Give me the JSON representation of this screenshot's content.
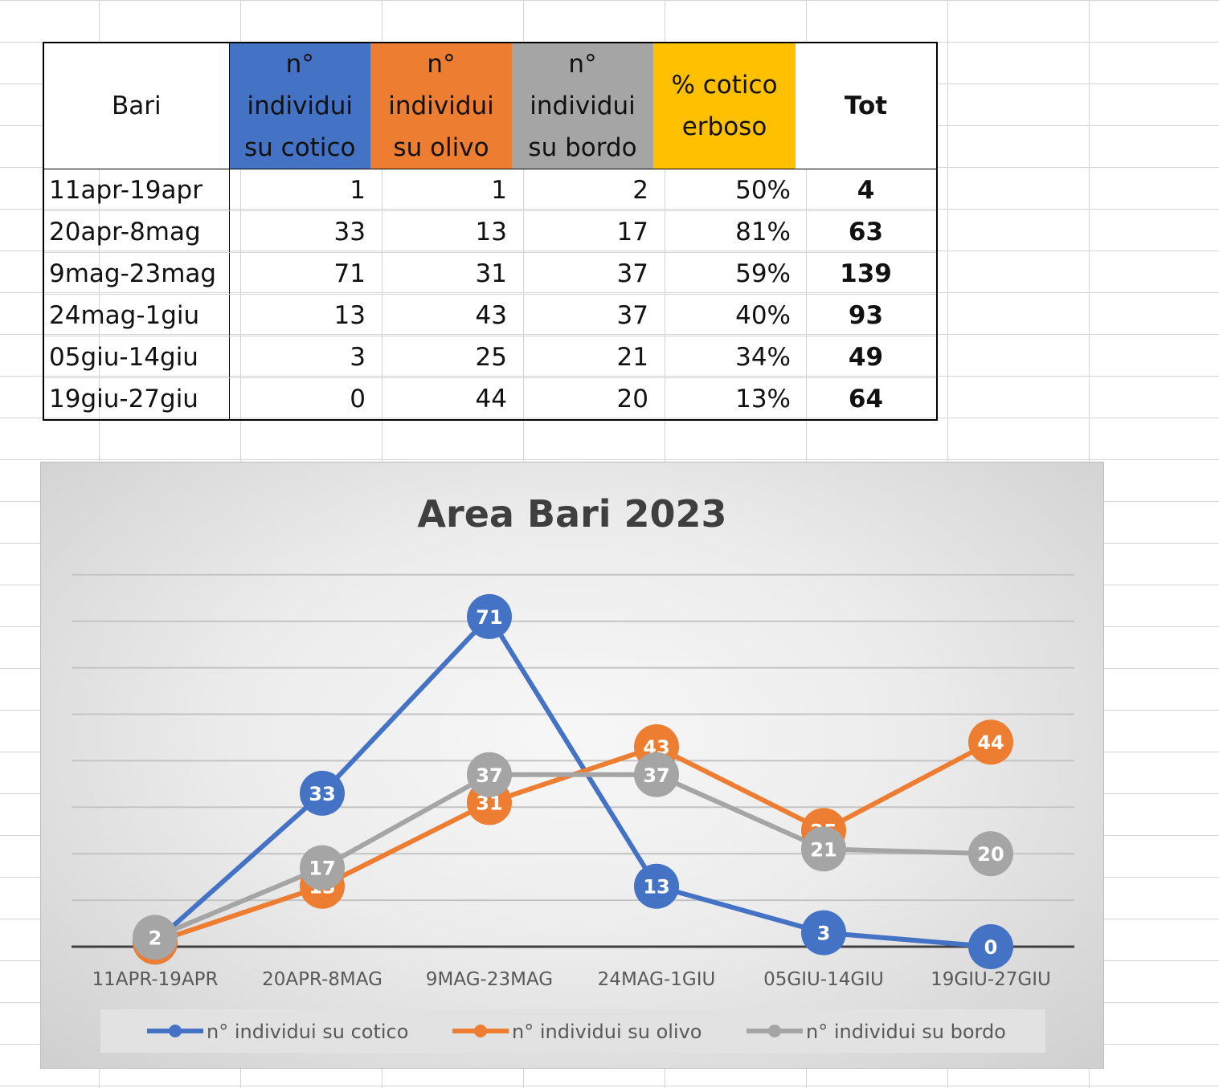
{
  "table": {
    "headers": [
      {
        "label": "Bari",
        "bg": "#ffffff",
        "color": "#111111"
      },
      {
        "label": "n° individui su cotico",
        "bg": "#4472c4",
        "color": "#111111"
      },
      {
        "label": "n° individui su olivo",
        "bg": "#ed7d31",
        "color": "#111111"
      },
      {
        "label": "n° individui su bordo",
        "bg": "#a5a5a5",
        "color": "#111111"
      },
      {
        "label": "% cotico erboso",
        "bg": "#ffc000",
        "color": "#111111"
      },
      {
        "label": "Tot",
        "bg": "#ffffff",
        "color": "#111111"
      }
    ],
    "rows": [
      [
        "11apr-19apr",
        "1",
        "1",
        "2",
        "50%",
        "4"
      ],
      [
        "20apr-8mag",
        "33",
        "13",
        "17",
        "81%",
        "63"
      ],
      [
        "9mag-23mag",
        "71",
        "31",
        "37",
        "59%",
        "139"
      ],
      [
        "24mag-1giu",
        "13",
        "43",
        "37",
        "40%",
        "93"
      ],
      [
        "05giu-14giu",
        "3",
        "25",
        "21",
        "34%",
        "49"
      ],
      [
        "19giu-27giu",
        "0",
        "44",
        "20",
        "13%",
        "64"
      ]
    ]
  },
  "chart_data": {
    "type": "line",
    "title": "Area Bari 2023",
    "xlabel": "",
    "ylabel": "",
    "categories": [
      "11APR-19APR",
      "20APR-8MAG",
      "9MAG-23MAG",
      "24MAG-1GIU",
      "05GIU-14GIU",
      "19GIU-27GIU"
    ],
    "series": [
      {
        "name": "n° individui su cotico",
        "color": "#4472c4",
        "values": [
          1,
          33,
          71,
          13,
          3,
          0
        ]
      },
      {
        "name": "n° individui su olivo",
        "color": "#ed7d31",
        "values": [
          1,
          13,
          31,
          43,
          25,
          44
        ]
      },
      {
        "name": "n° individui su bordo",
        "color": "#a5a5a5",
        "values": [
          2,
          17,
          37,
          37,
          21,
          20
        ]
      }
    ],
    "ylim": [
      0,
      80
    ],
    "y_gridline_step": 10,
    "grid": true,
    "data_labels": true,
    "legend": "bottom"
  }
}
